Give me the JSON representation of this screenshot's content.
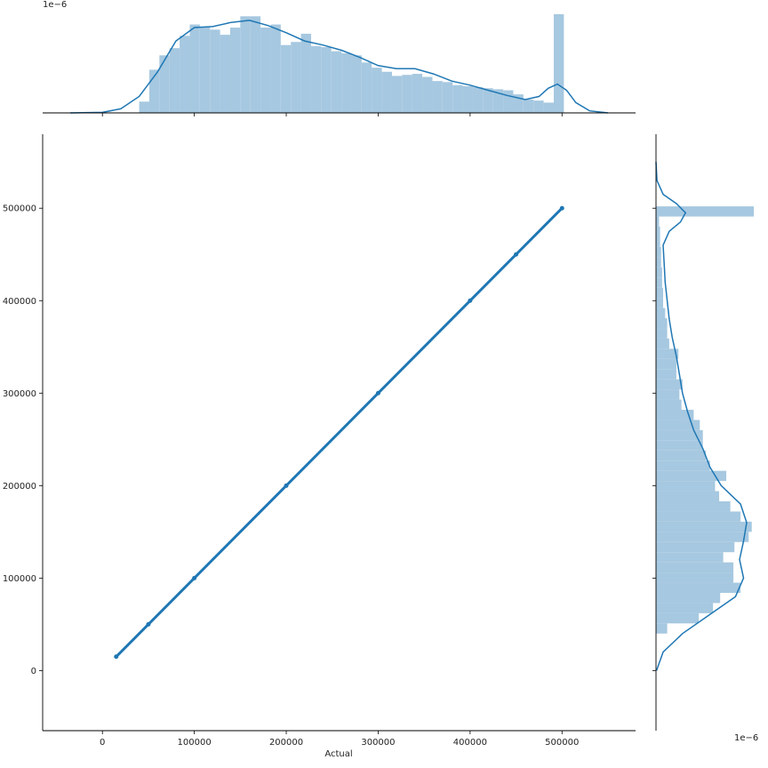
{
  "chart_data": {
    "type": "scatter",
    "title": "",
    "xlabel": "Actual",
    "ylabel": "",
    "xlim": [
      -65000,
      580000
    ],
    "ylim": [
      -65000,
      580000
    ],
    "xticks": [
      0,
      100000,
      200000,
      300000,
      400000,
      500000
    ],
    "yticks": [
      0,
      100000,
      200000,
      300000,
      400000,
      500000
    ],
    "xtick_labels": [
      "0",
      "100000",
      "200000",
      "300000",
      "400000",
      "500000"
    ],
    "ytick_labels": [
      "0",
      "100000",
      "200000",
      "300000",
      "400000",
      "500000"
    ],
    "joint": {
      "description_points": [
        {
          "x": 14999,
          "y": 14999
        },
        {
          "x": 50000,
          "y": 50000
        },
        {
          "x": 100000,
          "y": 100000
        },
        {
          "x": 200000,
          "y": 200000
        },
        {
          "x": 300000,
          "y": 300000
        },
        {
          "x": 400000,
          "y": 400000
        },
        {
          "x": 450000,
          "y": 450000
        },
        {
          "x": 500001,
          "y": 500001
        }
      ]
    },
    "marginal_x": {
      "offset_label": "1e−6",
      "hist_bins_start": [
        40000,
        51000,
        62000,
        73000,
        84000,
        95000,
        106000,
        117000,
        128000,
        139000,
        150000,
        161000,
        172000,
        183000,
        194000,
        205000,
        216000,
        227000,
        238000,
        249000,
        260000,
        271000,
        282000,
        293000,
        304000,
        315000,
        326000,
        337000,
        348000,
        359000,
        370000,
        381000,
        392000,
        403000,
        414000,
        425000,
        436000,
        447000,
        458000,
        469000,
        480000,
        491000
      ],
      "hist_density": [
        1.1,
        4.2,
        5.6,
        6.3,
        7.5,
        8.6,
        8.4,
        8.1,
        7.6,
        8.3,
        9.4,
        9.4,
        8.3,
        8.6,
        6.6,
        6.9,
        7.7,
        6.5,
        6.4,
        6.0,
        5.8,
        5.6,
        4.9,
        4.4,
        4.0,
        3.6,
        3.7,
        3.8,
        3.5,
        3.1,
        3.0,
        2.7,
        2.6,
        2.5,
        2.4,
        2.3,
        2.2,
        1.8,
        1.3,
        1.2,
        1.0,
        9.6
      ],
      "kde_x": [
        -35000,
        0,
        20000,
        40000,
        60000,
        80000,
        100000,
        120000,
        140000,
        160000,
        180000,
        200000,
        220000,
        240000,
        260000,
        280000,
        300000,
        320000,
        340000,
        360000,
        380000,
        400000,
        420000,
        440000,
        460000,
        475000,
        485000,
        495000,
        505000,
        515000,
        530000,
        550000
      ],
      "kde_y": [
        0.0,
        0.05,
        0.4,
        1.6,
        4.0,
        7.0,
        8.3,
        8.4,
        8.8,
        9.0,
        8.5,
        7.8,
        7.0,
        6.6,
        6.1,
        5.4,
        4.6,
        4.3,
        4.3,
        3.8,
        3.1,
        2.7,
        2.2,
        1.7,
        1.3,
        1.6,
        2.4,
        2.8,
        2.2,
        1.0,
        0.2,
        0.0
      ]
    },
    "marginal_y": {
      "offset_label": "1e−6",
      "hist_bins_start": [
        40000,
        51000,
        62000,
        73000,
        84000,
        95000,
        106000,
        117000,
        128000,
        139000,
        150000,
        161000,
        172000,
        183000,
        194000,
        205000,
        216000,
        227000,
        238000,
        249000,
        260000,
        271000,
        282000,
        293000,
        304000,
        315000,
        326000,
        337000,
        348000,
        359000,
        370000,
        381000,
        392000,
        403000,
        414000,
        425000,
        436000,
        447000,
        458000,
        469000,
        480000,
        491000
      ],
      "hist_density": [
        1.1,
        4.2,
        5.6,
        6.3,
        8.3,
        7.6,
        7.6,
        6.6,
        7.7,
        9.1,
        9.4,
        8.3,
        7.3,
        6.2,
        5.8,
        6.9,
        5.3,
        4.9,
        4.6,
        4.6,
        4.3,
        3.7,
        2.5,
        2.3,
        2.6,
        2.0,
        2.0,
        2.2,
        1.3,
        1.1,
        1.1,
        0.9,
        0.7,
        0.7,
        0.6,
        0.6,
        0.5,
        0.5,
        0.4,
        0.4,
        0.3,
        9.6
      ],
      "kde_y": [
        0,
        20000,
        40000,
        60000,
        80000,
        100000,
        120000,
        140000,
        160000,
        180000,
        200000,
        220000,
        240000,
        260000,
        280000,
        300000,
        320000,
        340000,
        360000,
        380000,
        400000,
        420000,
        440000,
        460000,
        475000,
        485000,
        495000,
        505000,
        515000,
        530000,
        550000
      ],
      "kde_x": [
        0.05,
        0.7,
        2.6,
        5.2,
        7.8,
        8.6,
        8.2,
        8.6,
        8.9,
        8.3,
        6.4,
        5.3,
        4.6,
        3.7,
        3.1,
        2.6,
        2.3,
        2.0,
        1.6,
        1.3,
        1.1,
        0.9,
        0.8,
        0.7,
        1.3,
        2.4,
        2.9,
        2.0,
        0.7,
        0.1,
        0.0
      ]
    },
    "grid": false,
    "legend": "none",
    "colors": {
      "scatter": "#1f77b4",
      "hist": "#a6c8e0",
      "kde": "#1f77b4"
    }
  }
}
